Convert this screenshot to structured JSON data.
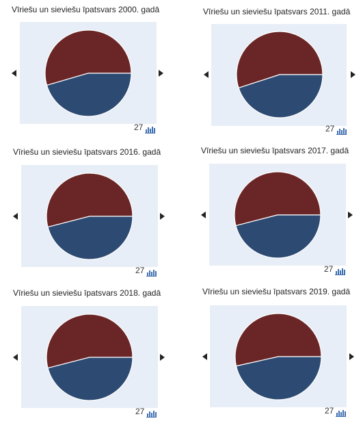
{
  "colors": {
    "series_a": "#6a2627",
    "series_b": "#2d4a72",
    "plot_background": "#e8eef7",
    "chart_icon": "#3e6fb0"
  },
  "icons": {
    "prev": "triangle-left",
    "next": "triangle-right",
    "chart": "bar-chart-icon"
  },
  "tiles": [
    {
      "title": "Vīriešu un sieviešu īpatsvars 2000. gadā",
      "count": "27"
    },
    {
      "title": "Vīriešu un sieviešu īpatsvars 2011. gadā",
      "count": "27"
    },
    {
      "title": "Vīriešu un sieviešu īpatsvars 2016. gadā",
      "count": "27"
    },
    {
      "title": "Vīriešu un sieviešu īpatsvars 2017. gadā",
      "count": "27"
    },
    {
      "title": "Vīriešu un sieviešu īpatsvars 2018. gadā",
      "count": "27"
    },
    {
      "title": "Vīriešu un sieviešu īpatsvars 2019. gadā",
      "count": "27"
    }
  ],
  "chart_data": [
    {
      "type": "pie",
      "title": "Vīriešu un sieviešu īpatsvars 2000. gadā",
      "slices": [
        {
          "color": "#6a2627",
          "value": 54.5
        },
        {
          "color": "#2d4a72",
          "value": 45.5
        }
      ]
    },
    {
      "type": "pie",
      "title": "Vīriešu un sieviešu īpatsvars 2011. gadā",
      "slices": [
        {
          "color": "#6a2627",
          "value": 55
        },
        {
          "color": "#2d4a72",
          "value": 45
        }
      ]
    },
    {
      "type": "pie",
      "title": "Vīriešu un sieviešu īpatsvars 2016. gadā",
      "slices": [
        {
          "color": "#6a2627",
          "value": 54
        },
        {
          "color": "#2d4a72",
          "value": 46
        }
      ]
    },
    {
      "type": "pie",
      "title": "Vīriešu un sieviešu īpatsvars 2017. gadā",
      "slices": [
        {
          "color": "#6a2627",
          "value": 54
        },
        {
          "color": "#2d4a72",
          "value": 46
        }
      ]
    },
    {
      "type": "pie",
      "title": "Vīriešu un sieviešu īpatsvars 2018. gadā",
      "slices": [
        {
          "color": "#6a2627",
          "value": 54
        },
        {
          "color": "#2d4a72",
          "value": 46
        }
      ]
    },
    {
      "type": "pie",
      "title": "Vīriešu un sieviešu īpatsvars 2019. gadā",
      "slices": [
        {
          "color": "#6a2627",
          "value": 53.5
        },
        {
          "color": "#2d4a72",
          "value": 46.5
        }
      ]
    }
  ]
}
